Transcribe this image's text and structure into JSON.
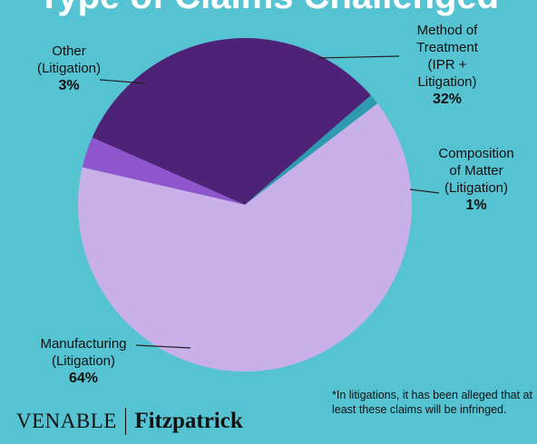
{
  "title": "Type of Claims Challenged",
  "chart_data": {
    "type": "pie",
    "title": "Type of Claims Challenged",
    "categories": [
      "Method of Treatment (IPR + Litigation)",
      "Composition of Matter (Litigation)",
      "Manufacturing (Litigation)",
      "Other (Litigation)"
    ],
    "values": [
      32,
      1,
      64,
      3
    ],
    "colors": [
      "#4e2377",
      "#2e9bb0",
      "#c9b0e8",
      "#8e55cc"
    ],
    "slices": [
      {
        "lines": [
          "Method of",
          "Treatment",
          "(IPR +",
          "Litigation)"
        ],
        "pct": "32%",
        "value": 32,
        "color": "#4e2377"
      },
      {
        "lines": [
          "Composition",
          "of Matter",
          "(Litigation)"
        ],
        "pct": "1%",
        "value": 1,
        "color": "#2e9bb0"
      },
      {
        "lines": [
          "Manufacturing",
          "(Litigation)"
        ],
        "pct": "64%",
        "value": 64,
        "color": "#c9b0e8"
      },
      {
        "lines": [
          "Other",
          "(Litigation)"
        ],
        "pct": "3%",
        "value": 3,
        "color": "#8e55cc"
      }
    ]
  },
  "footnote": "*In litigations, it has been alleged that at least these claims will be infringed.",
  "logo": {
    "left": "VENABLE",
    "right": "Fitzpatrick"
  }
}
